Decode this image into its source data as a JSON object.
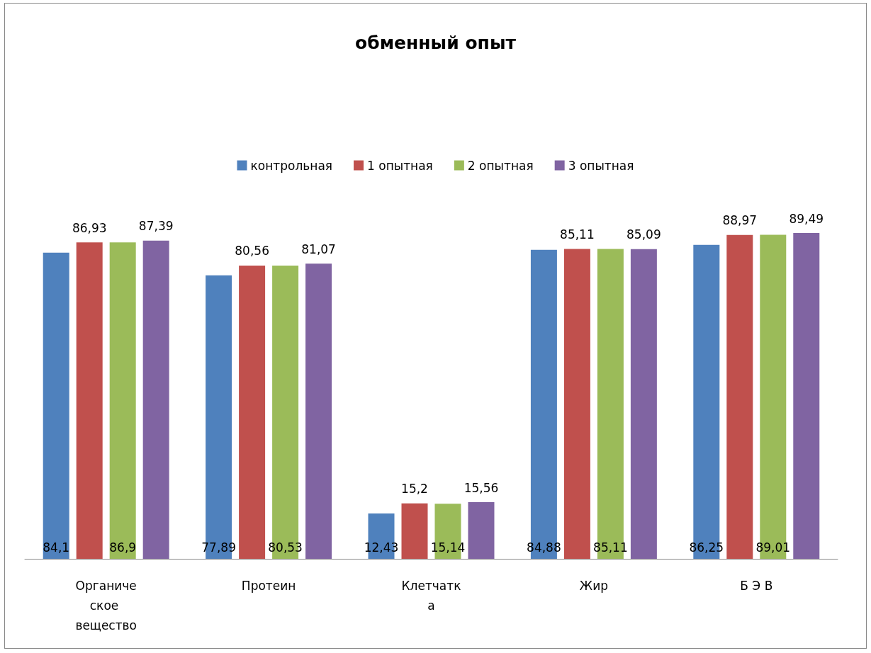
{
  "chart_data": {
    "type": "bar",
    "title": "обменный опыт",
    "categories": [
      "Органическое вещество",
      "Протеин",
      "Клетчатка",
      "Жир",
      "Б Э В"
    ],
    "series": [
      {
        "name": "контрольная",
        "color": "#4f81bd",
        "values": [
          84.1,
          77.89,
          12.43,
          84.88,
          86.25
        ],
        "value_labels": [
          "84,1",
          "77,89",
          "12,43",
          "84,88",
          "86,25"
        ]
      },
      {
        "name": "1 опытная",
        "color": "#c0504d",
        "values": [
          86.93,
          80.56,
          15.2,
          85.11,
          88.97
        ],
        "value_labels": [
          "86,93",
          "80,56",
          "15,2",
          "85,11",
          "88,97"
        ]
      },
      {
        "name": "2 опытная",
        "color": "#9bbb59",
        "values": [
          86.9,
          80.53,
          15.14,
          85.11,
          89.01
        ],
        "value_labels": [
          "86,9",
          "80,53",
          "15,14",
          "85,11",
          "89,01"
        ]
      },
      {
        "name": "3 опытная",
        "color": "#8064a2",
        "values": [
          87.39,
          81.07,
          15.56,
          85.09,
          89.49
        ],
        "value_labels": [
          "87,39",
          "81,07",
          "15,56",
          "85,09",
          "89,49"
        ]
      }
    ],
    "legend": "top"
  }
}
